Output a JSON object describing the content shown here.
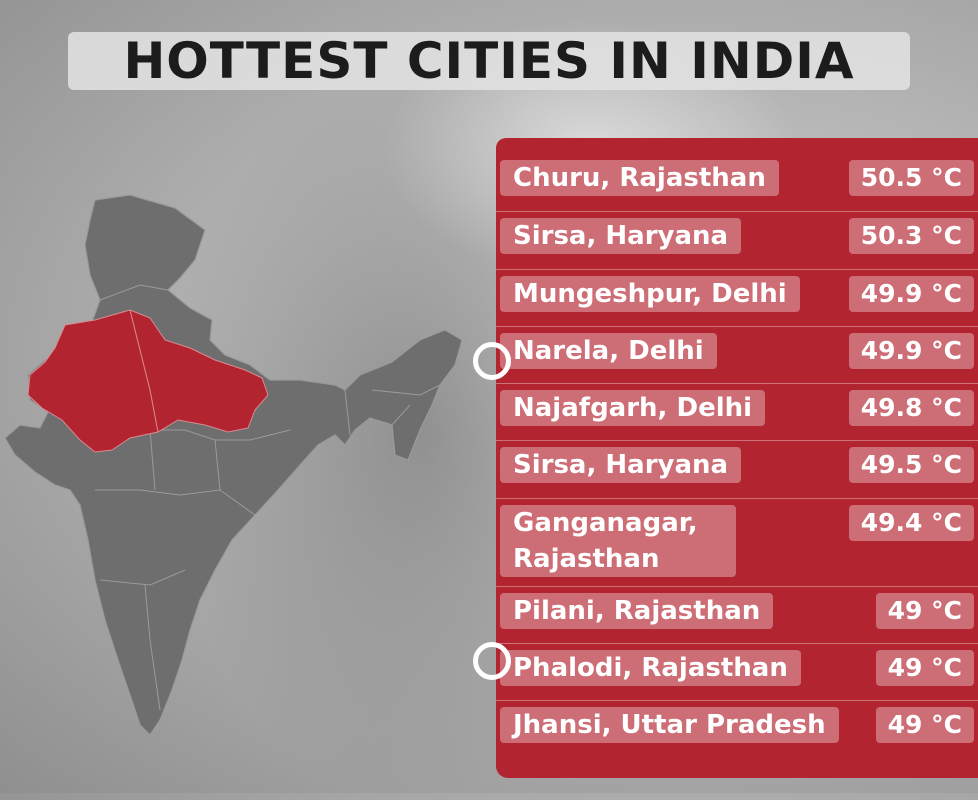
{
  "title": "HOTTEST CITIES IN INDIA",
  "colors": {
    "panel": "#b22430",
    "label_bg": "#cd6d75",
    "highlight_state": "#b22430",
    "map_gray": "#6e6e6e"
  },
  "cities": [
    {
      "name": "Churu, Rajasthan",
      "temp": "50.5 °C"
    },
    {
      "name": "Sirsa, Haryana",
      "temp": "50.3 °C"
    },
    {
      "name": "Mungeshpur, Delhi",
      "temp": "49.9 °C"
    },
    {
      "name": "Narela, Delhi",
      "temp": "49.9 °C"
    },
    {
      "name": "Najafgarh, Delhi",
      "temp": "49.8 °C"
    },
    {
      "name": "Sirsa, Haryana",
      "temp": "49.5 °C"
    },
    {
      "name": "Ganganagar, Rajasthan",
      "temp": "49.4 °C"
    },
    {
      "name": "Pilani, Rajasthan",
      "temp": "49 °C"
    },
    {
      "name": "Phalodi, Rajasthan",
      "temp": "49 °C"
    },
    {
      "name": "Jhansi, Uttar Pradesh",
      "temp": "49 °C"
    }
  ]
}
